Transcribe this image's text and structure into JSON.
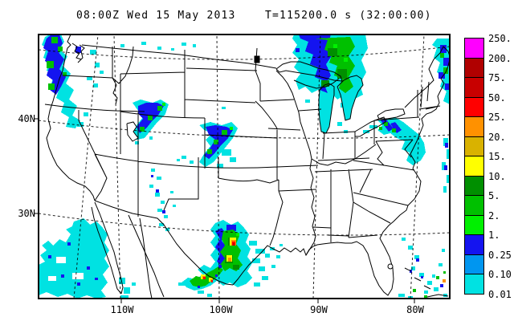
{
  "title": {
    "left": "08:00Z Wed 15 May 2013",
    "right": "T=115200.0 s (32:00:00)"
  },
  "axes": {
    "lat_labels": [
      {
        "text": "40N"
      },
      {
        "text": "30N"
      }
    ],
    "lon_labels": [
      {
        "text": "110W"
      },
      {
        "text": "100W"
      },
      {
        "text": "90W"
      },
      {
        "text": "80W"
      }
    ]
  },
  "legend": {
    "labels": [
      "250.",
      "200.",
      "75.",
      "50.",
      "25.",
      "20.",
      "15.",
      "10.",
      "5.",
      "2.",
      "1.",
      "0.25",
      "0.10",
      "0.01"
    ],
    "colors": [
      "#FF00FF",
      "#B00000",
      "#C80000",
      "#FF0000",
      "#FF9100",
      "#D9B200",
      "#FFFF00",
      "#008F00",
      "#00C000",
      "#00F000",
      "#1414F0",
      "#0096F0",
      "#00E2E2"
    ]
  },
  "map": {
    "line_color": "#000000",
    "grid_line_style": "dashed",
    "background": "#FFFFFF",
    "lake_fill": "#00E2E2"
  },
  "chart_data": {
    "type": "heatmap",
    "title": "08:00Z Wed 15 May 2013  T=115200.0 s (32:00:00)",
    "colorbar_levels": [
      0.01,
      0.1,
      0.25,
      1,
      2,
      5,
      10,
      15,
      20,
      25,
      50,
      75,
      200,
      250
    ],
    "lat_ticks": [
      "40N",
      "30N"
    ],
    "lon_ticks": [
      "110W",
      "100W",
      "90W",
      "80W"
    ],
    "precip_regions": [
      {
        "location": "Pacific Northwest coast (WA/OR)",
        "peak_scale_value": 10
      },
      {
        "location": "Northern Montana specks",
        "peak_scale_value": 0.1
      },
      {
        "location": "Lake Superior / Upper Michigan",
        "peak_scale_value": 10
      },
      {
        "location": "Maine / right edge",
        "peak_scale_value": 5
      },
      {
        "location": "Pennsylvania / Chesapeake / Mid-Atlantic coast",
        "peak_scale_value": 5
      },
      {
        "location": "Utah-Wyoming diagonal band",
        "peak_scale_value": 5
      },
      {
        "location": "NE Colorado / Nebraska-Kansas band",
        "peak_scale_value": 5
      },
      {
        "location": "New Mexico scattered specks",
        "peak_scale_value": 1
      },
      {
        "location": "Central/South Texas storm cluster",
        "peak_scale_value": 75
      },
      {
        "location": "Pacific off Baja / NW Mexico",
        "peak_scale_value": 1
      },
      {
        "location": "Florida east coast / Bahamas",
        "peak_scale_value": 25
      }
    ]
  }
}
